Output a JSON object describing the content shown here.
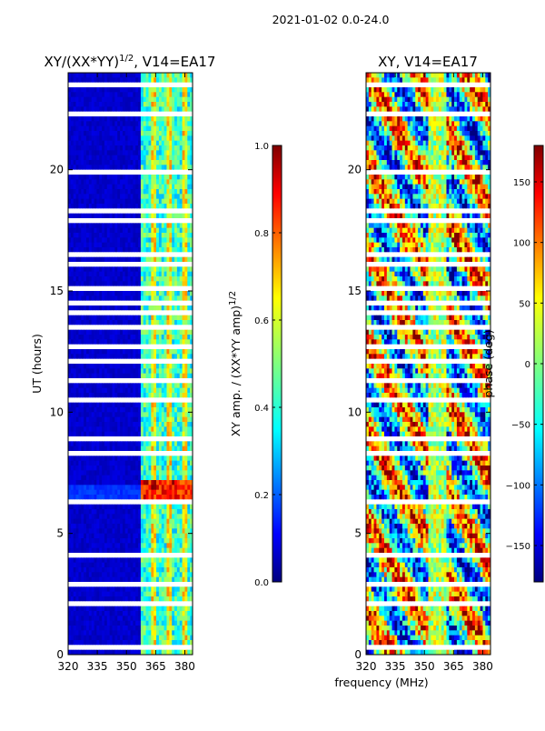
{
  "figure": {
    "suptitle": "2021-01-02 0.0-24.0",
    "xlabel": "frequency (MHz)"
  },
  "chart_data": [
    {
      "type": "heatmap",
      "title": "XY/(XX*YY)",
      "title_superscript": "1/2",
      "title_suffix": ", V14=EA17",
      "xlabel": "",
      "ylabel": "UT (hours)",
      "xlim": [
        320,
        384
      ],
      "ylim": [
        0,
        24
      ],
      "xticks": [
        320,
        335,
        350,
        365,
        380
      ],
      "yticks": [
        0,
        5,
        10,
        15,
        20
      ],
      "colormap": "jet",
      "colorbar": {
        "label": "XY amp. / (XX*YY amp)",
        "label_superscript": "1/2",
        "range": [
          0.0,
          1.0
        ],
        "ticks": [
          "0.0",
          "0.2",
          "0.4",
          "0.6",
          "0.8",
          "1.0"
        ]
      }
    },
    {
      "type": "heatmap",
      "title": "XY, V14=EA17",
      "xlabel": "frequency (MHz)",
      "ylabel": "",
      "xlim": [
        320,
        384
      ],
      "ylim": [
        0,
        24
      ],
      "xticks": [
        320,
        335,
        350,
        365,
        380
      ],
      "yticks": [
        0,
        5,
        10,
        15,
        20
      ],
      "colormap": "jet",
      "colorbar": {
        "label": "phase (deg)",
        "range": [
          -180,
          180
        ],
        "ticks": [
          "−150",
          "−100",
          "−50",
          "0",
          "50",
          "100",
          "150"
        ]
      }
    }
  ],
  "colors": {
    "jet": [
      "#00007f",
      "#0000ff",
      "#007fff",
      "#00ffff",
      "#7fff7f",
      "#ffff00",
      "#ff7f00",
      "#ff0000",
      "#7f0000"
    ],
    "gap": "#ffffff",
    "axis": "#000000"
  }
}
